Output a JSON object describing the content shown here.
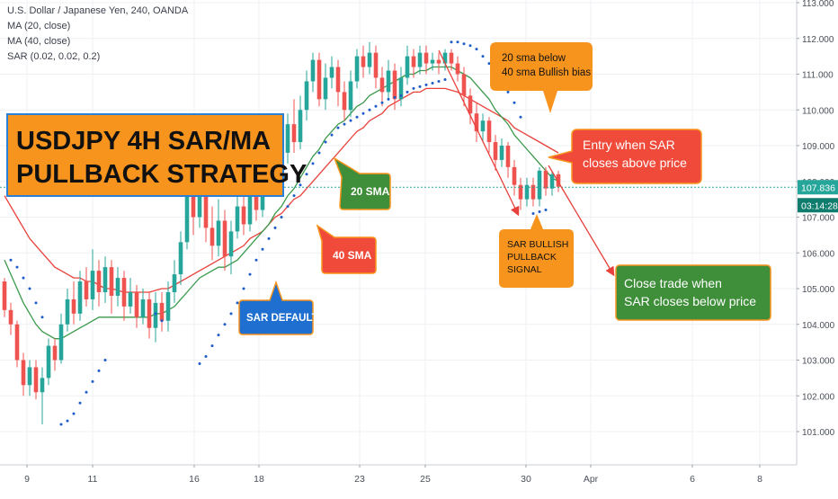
{
  "legend": {
    "symbol": "U.S. Dollar / Japanese Yen, 240, OANDA",
    "ma20": "MA (20, close)",
    "ma40": "MA (40, close)",
    "sar": "SAR (0.02, 0.02, 0.2)"
  },
  "colors": {
    "up": "#26a69a",
    "down": "#ef5350",
    "ma20": "#3a9a4a",
    "ma40": "#e8403a",
    "sar": "#1e5cc8",
    "price_tag": "#26a69a",
    "time_tag": "#0f7c6e",
    "orange": "#f7941d",
    "green_box": "#3e8e3a",
    "red_box": "#ef4a3a",
    "blue_box": "#1f6fd0"
  },
  "annotations": {
    "title": "USDJPY 4H SAR/MA\nPULLBACK STRATEGY",
    "sma20_note": "20 sma below\n40 sma Bullish bias",
    "entry": "Entry when SAR\ncloses above price",
    "sma20_label": "20 SMA",
    "sma40_label": "40 SMA",
    "sar_default": "SAR DEFAULT",
    "bullish_signal": "SAR BULLISH\nPULLBACK\nSIGNAL",
    "close_trade": "Close trade when\nSAR closes below price"
  },
  "price_tag": "107.836",
  "time_tag": "03:14:28",
  "chart_data": {
    "type": "candlestick",
    "title": "U.S. Dollar / Japanese Yen, 240, OANDA",
    "ylim": [
      100.35,
      113.05
    ],
    "y_ticks": [
      101.0,
      102.0,
      103.0,
      104.0,
      105.0,
      106.0,
      107.0,
      108.0,
      109.0,
      110.0,
      111.0,
      112.0,
      113.0
    ],
    "y_tick_labels": [
      "101.000",
      "102.000",
      "103.000",
      "104.000",
      "105.000",
      "106.000",
      "107.000",
      "108.000",
      "109.000",
      "110.000",
      "111.000",
      "112.000",
      "113.000"
    ],
    "x_ticks": [
      "9",
      "11",
      "16",
      "18",
      "23",
      "25",
      "30",
      "Apr",
      "6",
      "8"
    ],
    "last_price": 107.836,
    "grid": true,
    "series": [
      {
        "name": "USDJPY",
        "values": [
          [
            105.2,
            104.4,
            105.3,
            104.2
          ],
          [
            104.4,
            104.0,
            104.6,
            103.7
          ],
          [
            104.0,
            103.0,
            104.1,
            102.8
          ],
          [
            103.0,
            102.3,
            103.2,
            102.0
          ],
          [
            102.3,
            102.8,
            103.0,
            102.0
          ],
          [
            102.8,
            102.1,
            103.0,
            101.9
          ],
          [
            102.1,
            102.5,
            102.8,
            101.2
          ],
          [
            102.5,
            103.4,
            103.6,
            102.3
          ],
          [
            103.4,
            103.0,
            103.6,
            102.7
          ],
          [
            103.0,
            104.0,
            104.3,
            102.9
          ],
          [
            104.0,
            104.7,
            105.0,
            103.8
          ],
          [
            104.7,
            104.3,
            105.2,
            104.0
          ],
          [
            104.3,
            105.2,
            105.5,
            104.1
          ],
          [
            105.2,
            104.7,
            105.6,
            104.5
          ],
          [
            104.7,
            105.5,
            106.1,
            104.4
          ],
          [
            105.5,
            104.9,
            105.8,
            104.5
          ],
          [
            104.9,
            105.6,
            105.9,
            104.6
          ],
          [
            105.6,
            104.8,
            105.8,
            104.3
          ],
          [
            104.8,
            105.3,
            105.6,
            104.5
          ],
          [
            105.3,
            104.5,
            105.5,
            104.1
          ],
          [
            104.5,
            104.9,
            105.3,
            104.3
          ],
          [
            104.9,
            104.2,
            105.1,
            103.9
          ],
          [
            104.2,
            104.7,
            105.0,
            104.0
          ],
          [
            104.7,
            103.9,
            104.9,
            103.6
          ],
          [
            103.9,
            104.6,
            104.9,
            103.5
          ],
          [
            104.6,
            104.1,
            104.9,
            103.8
          ],
          [
            104.1,
            104.9,
            105.2,
            103.8
          ],
          [
            104.9,
            105.4,
            105.8,
            104.6
          ],
          [
            105.4,
            106.3,
            106.6,
            105.1
          ],
          [
            106.3,
            107.6,
            107.9,
            106.1
          ],
          [
            107.6,
            107.0,
            108.3,
            106.5
          ],
          [
            107.0,
            107.9,
            108.4,
            106.7
          ],
          [
            107.9,
            106.7,
            108.2,
            106.3
          ],
          [
            106.7,
            106.2,
            107.3,
            105.8
          ],
          [
            106.2,
            106.9,
            107.5,
            105.9
          ],
          [
            106.9,
            105.9,
            107.2,
            105.5
          ],
          [
            105.9,
            106.6,
            106.9,
            105.4
          ],
          [
            106.6,
            107.3,
            107.6,
            106.4
          ],
          [
            107.3,
            106.8,
            107.9,
            106.5
          ],
          [
            106.8,
            107.6,
            108.0,
            106.6
          ],
          [
            107.6,
            107.2,
            107.9,
            106.9
          ],
          [
            107.2,
            107.9,
            108.4,
            107.0
          ],
          [
            107.9,
            108.6,
            108.9,
            107.6
          ],
          [
            108.6,
            108.1,
            109.1,
            107.8
          ],
          [
            108.1,
            108.8,
            109.2,
            107.9
          ],
          [
            108.8,
            109.6,
            109.9,
            108.5
          ],
          [
            109.6,
            109.1,
            110.3,
            108.8
          ],
          [
            109.1,
            110.0,
            110.4,
            108.9
          ],
          [
            110.0,
            110.8,
            111.1,
            109.7
          ],
          [
            110.8,
            111.4,
            111.6,
            110.5
          ],
          [
            111.4,
            110.3,
            111.6,
            110.1
          ],
          [
            110.3,
            110.9,
            111.3,
            110.0
          ],
          [
            110.9,
            111.2,
            111.5,
            110.6
          ],
          [
            111.2,
            110.5,
            111.4,
            110.1
          ],
          [
            110.5,
            110.0,
            110.8,
            109.7
          ],
          [
            110.0,
            110.8,
            111.1,
            109.8
          ],
          [
            110.8,
            111.5,
            111.7,
            110.6
          ],
          [
            111.5,
            111.2,
            111.8,
            110.9
          ],
          [
            111.2,
            111.6,
            111.9,
            111.0
          ],
          [
            111.6,
            110.9,
            111.8,
            110.6
          ],
          [
            110.9,
            110.5,
            111.2,
            110.1
          ],
          [
            110.5,
            111.1,
            111.4,
            110.3
          ],
          [
            111.1,
            110.3,
            111.3,
            110.0
          ],
          [
            110.3,
            110.9,
            111.2,
            110.1
          ],
          [
            110.9,
            111.5,
            111.8,
            110.7
          ],
          [
            111.5,
            111.2,
            111.7,
            110.9
          ],
          [
            111.2,
            111.6,
            111.8,
            111.0
          ],
          [
            111.6,
            111.3,
            111.8,
            111.0
          ],
          [
            111.3,
            111.4,
            111.6,
            111.1
          ],
          [
            111.4,
            111.3,
            111.6,
            111.0
          ],
          [
            111.3,
            111.6,
            111.7,
            111.1
          ],
          [
            111.6,
            111.3,
            111.7,
            111.1
          ],
          [
            111.3,
            111.0,
            111.5,
            110.8
          ],
          [
            111.0,
            110.4,
            111.2,
            110.1
          ],
          [
            110.4,
            109.9,
            110.6,
            109.6
          ],
          [
            109.9,
            109.4,
            110.2,
            109.1
          ],
          [
            109.4,
            109.7,
            109.9,
            109.1
          ],
          [
            109.7,
            109.1,
            109.8,
            108.8
          ],
          [
            109.1,
            108.6,
            109.3,
            108.3
          ],
          [
            108.6,
            109.0,
            109.2,
            108.4
          ],
          [
            109.0,
            108.4,
            109.1,
            108.1
          ],
          [
            108.4,
            107.9,
            108.6,
            107.6
          ],
          [
            107.9,
            107.5,
            108.1,
            107.2
          ],
          [
            107.5,
            107.9,
            108.1,
            107.3
          ],
          [
            107.9,
            107.5,
            108.1,
            107.3
          ],
          [
            107.5,
            108.3,
            108.4,
            107.3
          ],
          [
            108.3,
            107.8,
            108.4,
            107.6
          ],
          [
            107.8,
            108.2,
            108.3,
            107.6
          ],
          [
            108.2,
            107.85,
            108.3,
            107.7
          ]
        ]
      },
      {
        "name": "MA (20, close)",
        "values": [
          105.8,
          105.4,
          105.0,
          104.6,
          104.3,
          104.0,
          103.8,
          103.7,
          103.6,
          103.6,
          103.7,
          103.8,
          103.9,
          104.0,
          104.1,
          104.2,
          104.2,
          104.2,
          104.2,
          104.2,
          104.2,
          104.2,
          104.2,
          104.2,
          104.3,
          104.3,
          104.4,
          104.5,
          104.7,
          104.9,
          105.1,
          105.3,
          105.4,
          105.5,
          105.6,
          105.6,
          105.7,
          105.8,
          106.0,
          106.2,
          106.4,
          106.6,
          106.8,
          107.1,
          107.3,
          107.6,
          107.8,
          108.1,
          108.4,
          108.7,
          108.9,
          109.2,
          109.4,
          109.6,
          109.7,
          109.9,
          110.1,
          110.2,
          110.4,
          110.5,
          110.6,
          110.7,
          110.8,
          110.9,
          111.0,
          111.0,
          111.1,
          111.1,
          111.2,
          111.2,
          111.2,
          111.2,
          111.1,
          111.0,
          110.9,
          110.7,
          110.5,
          110.3,
          110.0,
          109.8,
          109.6,
          109.3,
          109.1,
          108.9,
          108.7,
          108.5,
          108.3,
          108.1,
          108.0
        ]
      },
      {
        "name": "MA (40, close)",
        "values": [
          107.6,
          107.3,
          107.0,
          106.7,
          106.4,
          106.2,
          106.0,
          105.8,
          105.6,
          105.5,
          105.4,
          105.3,
          105.3,
          105.2,
          105.2,
          105.1,
          105.0,
          105.0,
          104.95,
          104.9,
          104.9,
          104.9,
          104.9,
          104.9,
          104.95,
          105.0,
          105.0,
          105.1,
          105.2,
          105.3,
          105.4,
          105.5,
          105.6,
          105.7,
          105.8,
          105.9,
          106.0,
          106.1,
          106.2,
          106.4,
          106.5,
          106.6,
          106.8,
          107.0,
          107.1,
          107.3,
          107.5,
          107.6,
          107.8,
          108.0,
          108.2,
          108.4,
          108.6,
          108.8,
          109.0,
          109.2,
          109.4,
          109.5,
          109.7,
          109.8,
          109.9,
          110.1,
          110.2,
          110.3,
          110.4,
          110.5,
          110.5,
          110.6,
          110.6,
          110.6,
          110.6,
          110.55,
          110.5,
          110.4,
          110.3,
          110.2,
          110.1,
          110.0,
          109.9,
          109.8,
          109.7,
          109.5,
          109.4,
          109.3,
          109.2,
          109.1,
          109.0,
          108.9,
          108.8
        ]
      },
      {
        "name": "SAR (0.02, 0.02, 0.2)",
        "points": [
          [
            1,
            105.8
          ],
          [
            2,
            105.6
          ],
          [
            3,
            105.3
          ],
          [
            4,
            105.0
          ],
          [
            5,
            104.6
          ],
          [
            6,
            104.2
          ],
          [
            9,
            101.2
          ],
          [
            10,
            101.3
          ],
          [
            11,
            101.5
          ],
          [
            12,
            101.8
          ],
          [
            13,
            102.1
          ],
          [
            14,
            102.4
          ],
          [
            15,
            102.7
          ],
          [
            16,
            103.0
          ],
          [
            24,
            104.3
          ],
          [
            25,
            104.1
          ],
          [
            31,
            102.9
          ],
          [
            32,
            103.1
          ],
          [
            33,
            103.4
          ],
          [
            34,
            103.7
          ],
          [
            35,
            104.0
          ],
          [
            36,
            104.3
          ],
          [
            37,
            104.6
          ],
          [
            38,
            105.0
          ],
          [
            39,
            105.4
          ],
          [
            40,
            105.8
          ],
          [
            41,
            106.1
          ],
          [
            42,
            106.4
          ],
          [
            43,
            106.7
          ],
          [
            44,
            107.0
          ],
          [
            45,
            107.3
          ],
          [
            46,
            107.6
          ],
          [
            47,
            107.9
          ],
          [
            48,
            108.2
          ],
          [
            49,
            108.5
          ],
          [
            50,
            108.8
          ],
          [
            51,
            109.1
          ],
          [
            52,
            109.3
          ],
          [
            53,
            109.5
          ],
          [
            54,
            109.6
          ],
          [
            55,
            109.7
          ],
          [
            56,
            109.8
          ],
          [
            57,
            109.9
          ],
          [
            58,
            110.0
          ],
          [
            59,
            110.1
          ],
          [
            60,
            110.2
          ],
          [
            61,
            110.3
          ],
          [
            62,
            110.35
          ],
          [
            63,
            110.4
          ],
          [
            64,
            110.5
          ],
          [
            65,
            110.6
          ],
          [
            66,
            110.65
          ],
          [
            67,
            110.7
          ],
          [
            68,
            110.75
          ],
          [
            69,
            110.8
          ],
          [
            70,
            110.85
          ],
          [
            71,
            111.9
          ],
          [
            72,
            111.9
          ],
          [
            73,
            111.85
          ],
          [
            74,
            111.8
          ],
          [
            75,
            111.7
          ],
          [
            76,
            111.5
          ],
          [
            77,
            111.3
          ],
          [
            78,
            111.1
          ],
          [
            79,
            110.8
          ],
          [
            80,
            110.5
          ],
          [
            81,
            110.2
          ],
          [
            82,
            109.8
          ],
          [
            84,
            107.1
          ],
          [
            85,
            107.15
          ],
          [
            86,
            107.2
          ]
        ]
      }
    ]
  }
}
